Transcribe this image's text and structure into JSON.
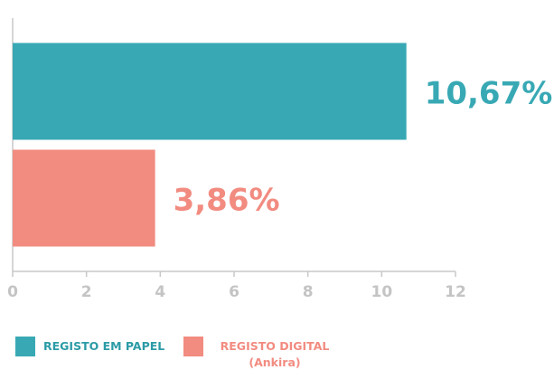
{
  "chart_data": {
    "type": "bar",
    "orientation": "horizontal",
    "categories": [
      null,
      null
    ],
    "series": [
      {
        "name": "REGISTO EM PAPEL",
        "color": "#38a9b4",
        "values": [
          10.67,
          null
        ],
        "value_labels": [
          "10,67%",
          null
        ]
      },
      {
        "name": "REGISTO DIGITAL (Ankira)",
        "color": "#f28b80",
        "values": [
          null,
          3.86
        ],
        "value_labels": [
          null,
          "3,86%"
        ]
      }
    ],
    "xlim": [
      0,
      12
    ],
    "xticks": [
      0,
      2,
      4,
      6,
      8,
      10,
      12
    ],
    "grid": false
  }
}
